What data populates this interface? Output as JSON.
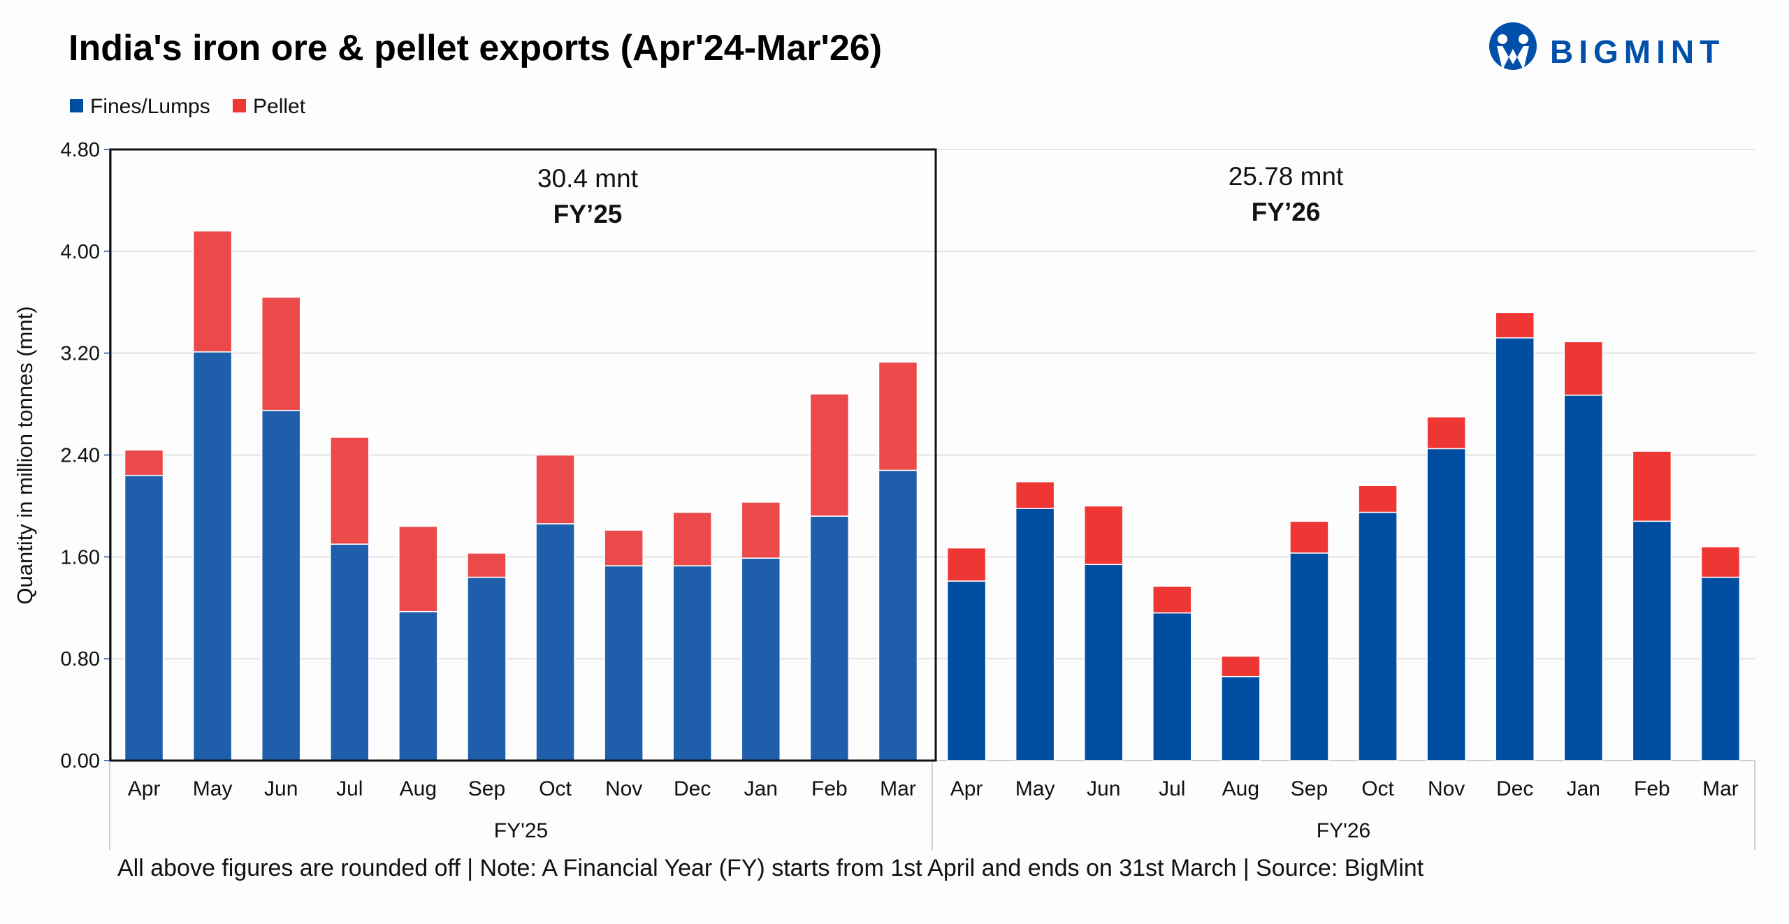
{
  "chart_data": {
    "type": "bar",
    "stacked": true,
    "title": "India's iron ore & pellet exports (Apr'24-Mar'26)",
    "ylabel": "Quantity in million tonnes (mnt)",
    "xlabel": "",
    "ylim": [
      0,
      4.8
    ],
    "yticks": [
      "0.00",
      "0.80",
      "1.60",
      "2.40",
      "3.20",
      "4.00",
      "4.80"
    ],
    "grid": true,
    "legend_position": "top-left",
    "groups": [
      {
        "label": "FY'25",
        "total_label": "30.4 mnt",
        "fy_label": "FY’25",
        "categories": [
          "Apr",
          "May",
          "Jun",
          "Jul",
          "Aug",
          "Sep",
          "Oct",
          "Nov",
          "Dec",
          "Jan",
          "Feb",
          "Mar"
        ]
      },
      {
        "label": "FY'26",
        "total_label": "25.78 mnt",
        "fy_label": "FY’26",
        "categories": [
          "Apr",
          "May",
          "Jun",
          "Jul",
          "Aug",
          "Sep",
          "Oct",
          "Nov",
          "Dec",
          "Jan",
          "Feb",
          "Mar"
        ]
      }
    ],
    "series": [
      {
        "name": "Fines/Lumps",
        "color": "#004ea2",
        "values": [
          2.24,
          3.21,
          2.75,
          1.7,
          1.17,
          1.44,
          1.86,
          1.53,
          1.53,
          1.59,
          1.92,
          2.28,
          1.41,
          1.98,
          1.54,
          1.16,
          0.66,
          1.63,
          1.95,
          2.45,
          3.32,
          2.87,
          1.88,
          1.44
        ]
      },
      {
        "name": "Pellet",
        "color": "#ee3735",
        "values": [
          0.2,
          0.95,
          0.89,
          0.84,
          0.67,
          0.19,
          0.54,
          0.28,
          0.42,
          0.44,
          0.96,
          0.85,
          0.26,
          0.21,
          0.46,
          0.21,
          0.16,
          0.25,
          0.21,
          0.25,
          0.2,
          0.42,
          0.55,
          0.24
        ]
      }
    ],
    "fy25_colors": {
      "Fines/Lumps": "#1f5eab",
      "Pellet": "#ec4a4a"
    }
  },
  "footer": "All above figures are rounded off  | Note: A Financial Year (FY) starts from 1st April and ends on 31st March | Source: BigMint",
  "logo": {
    "text": "BIGMINT",
    "color": "#0050aa"
  }
}
